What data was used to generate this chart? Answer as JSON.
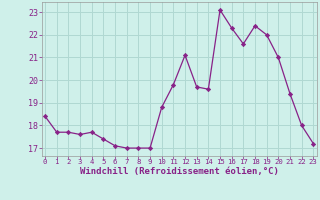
{
  "x": [
    0,
    1,
    2,
    3,
    4,
    5,
    6,
    7,
    8,
    9,
    10,
    11,
    12,
    13,
    14,
    15,
    16,
    17,
    18,
    19,
    20,
    21,
    22,
    23
  ],
  "y": [
    18.4,
    17.7,
    17.7,
    17.6,
    17.7,
    17.4,
    17.1,
    17.0,
    17.0,
    17.0,
    18.8,
    19.8,
    21.1,
    19.7,
    19.6,
    23.1,
    22.3,
    21.6,
    22.4,
    22.0,
    21.0,
    19.4,
    18.0,
    17.2
  ],
  "line_color": "#882288",
  "marker": "D",
  "marker_size": 2.2,
  "bg_color": "#cff0ea",
  "grid_color": "#b0d8d2",
  "xlabel": "Windchill (Refroidissement éolien,°C)",
  "xlabel_fontsize": 6.5,
  "ytick_labels": [
    "17",
    "18",
    "19",
    "20",
    "21",
    "22",
    "23"
  ],
  "ytick_values": [
    17,
    18,
    19,
    20,
    21,
    22,
    23
  ],
  "xtick_values": [
    0,
    1,
    2,
    3,
    4,
    5,
    6,
    7,
    8,
    9,
    10,
    11,
    12,
    13,
    14,
    15,
    16,
    17,
    18,
    19,
    20,
    21,
    22,
    23
  ],
  "ylim": [
    16.65,
    23.45
  ],
  "xlim": [
    -0.3,
    23.3
  ]
}
